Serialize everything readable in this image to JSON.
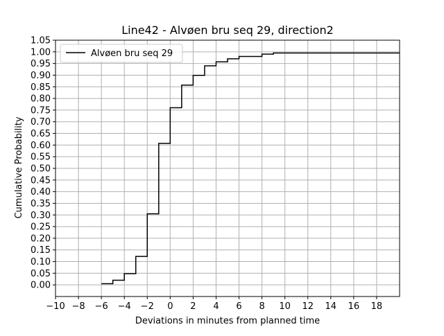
{
  "chart_data": {
    "type": "line",
    "step": "post",
    "title": "Line42 - Alvøen bru seq 29, direction2",
    "xlabel": "Deviations in minutes from planned time",
    "ylabel": "Cumulative Probability",
    "xlim": [
      -10,
      20
    ],
    "ylim": [
      -0.05,
      1.05
    ],
    "xticks": [
      -10,
      -8,
      -6,
      -4,
      -2,
      0,
      2,
      4,
      6,
      8,
      10,
      12,
      14,
      16,
      18
    ],
    "xtick_labels": [
      "−10",
      "−8",
      "−6",
      "−4",
      "−2",
      "0",
      "2",
      "4",
      "6",
      "8",
      "10",
      "12",
      "14",
      "16",
      "18"
    ],
    "yticks": [
      0,
      0.05,
      0.1,
      0.15,
      0.2,
      0.25,
      0.3,
      0.35,
      0.4,
      0.45,
      0.5,
      0.55,
      0.6,
      0.65,
      0.7,
      0.75,
      0.8,
      0.85,
      0.9,
      0.95,
      1.0,
      1.05
    ],
    "ytick_labels": [
      "0.00",
      "0.05",
      "0.10",
      "0.15",
      "0.20",
      "0.25",
      "0.30",
      "0.35",
      "0.40",
      "0.45",
      "0.50",
      "0.55",
      "0.60",
      "0.65",
      "0.70",
      "0.75",
      "0.80",
      "0.85",
      "0.90",
      "0.95",
      "1.00",
      "1.05"
    ],
    "grid": true,
    "legend_position": "top-left",
    "series": [
      {
        "name": "Alvøen bru seq 29",
        "color": "#000000",
        "x": [
          -6,
          -5,
          -4,
          -3,
          -2,
          -1,
          0,
          1,
          2,
          3,
          4,
          5,
          6,
          7,
          8,
          9,
          20
        ],
        "y": [
          0.005,
          0.02,
          0.048,
          0.122,
          0.305,
          0.607,
          0.76,
          0.857,
          0.899,
          0.94,
          0.957,
          0.97,
          0.98,
          0.98,
          0.99,
          0.995,
          0.995
        ]
      }
    ]
  }
}
